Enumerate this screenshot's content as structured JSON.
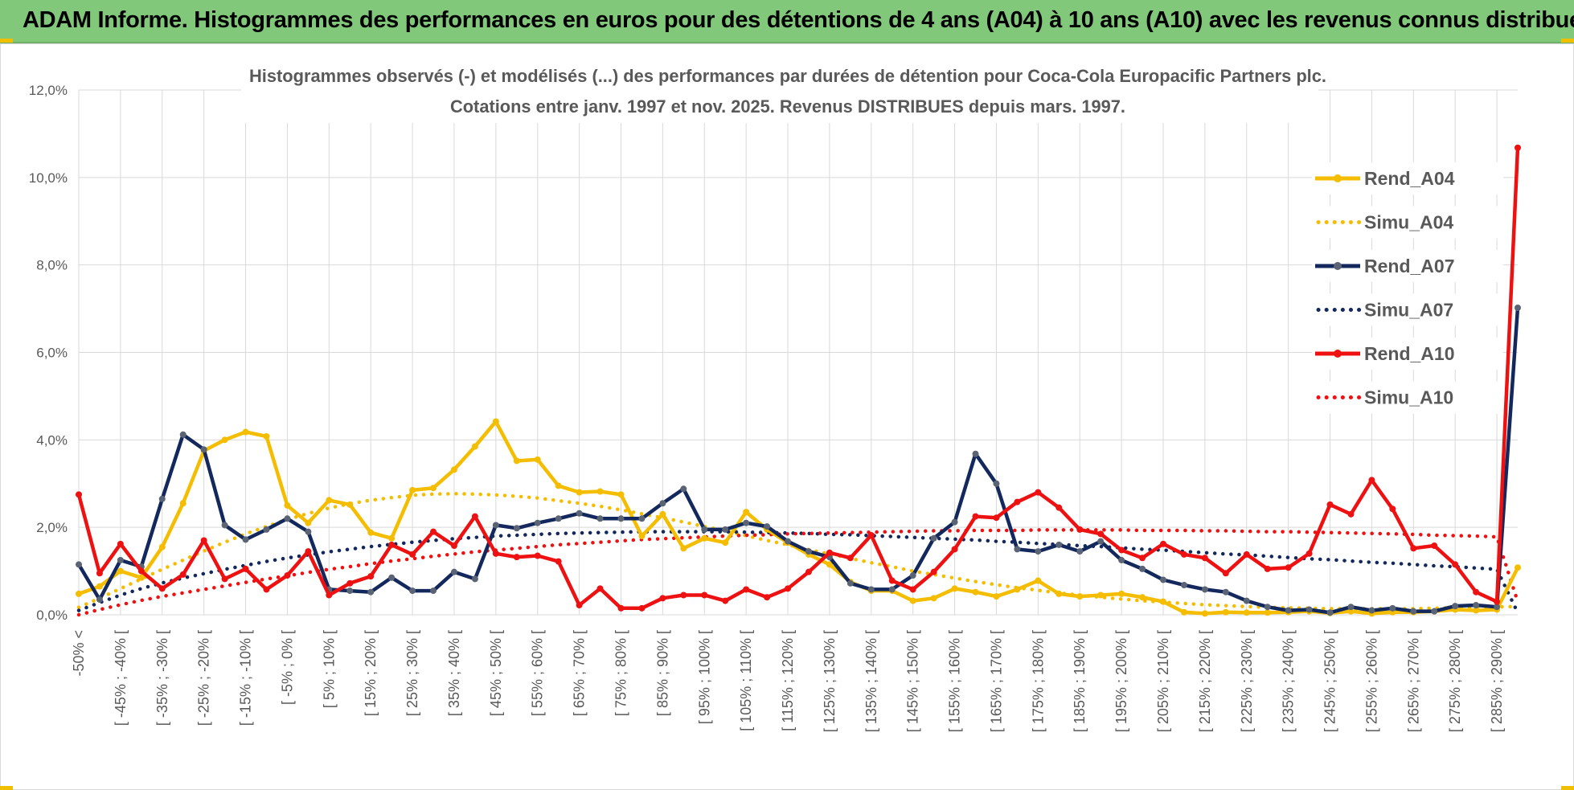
{
  "banner": {
    "title": "ADAM Informe. Histogrammes des performances en euros pour des détentions de 4 ans (A04) à 10 ans (A10) avec les revenus connus distribués"
  },
  "colors": {
    "banner_bg": "#82c87a",
    "a04": "#f5bd00",
    "a07": "#13285c",
    "a10": "#ee1111",
    "marker_a07": "#5a6475",
    "grid": "#d9d9d9"
  },
  "chart_data": {
    "type": "line",
    "title": "Histogrammes observés (-) et modélisés (...) des performances par durées de détention pour Coca-Cola Europacific Partners plc.",
    "subtitle": "Cotations entre janv. 1997 et nov. 2025. Revenus DISTRIBUES depuis mars. 1997.",
    "ylim": [
      0,
      12
    ],
    "yticks": [
      "0,0%",
      "2,0%",
      "4,0%",
      "6,0%",
      "8,0%",
      "10,0%",
      "12,0%"
    ],
    "ytick_values": [
      0,
      2,
      4,
      6,
      8,
      10,
      12
    ],
    "x_count": 70,
    "category_labels": [
      "-50% <",
      "[ -45% ; -40% [",
      "[ -35% ; -30% [",
      "[ -25% ; -20% [",
      "[ -15% ; -10% [",
      "[ -5% ; 0% [",
      "[ 5% ; 10% [",
      "[ 15% ; 20% [",
      "[ 25% ; 30% [",
      "[ 35% ; 40% [",
      "[ 45% ; 50% [",
      "[ 55% ; 60% [",
      "[ 65% ; 70% [",
      "[ 75% ; 80% [",
      "[ 85% ; 90% [",
      "[ 95% ; 100% [",
      "[ 105% ; 110% [",
      "[ 115% ; 120% [",
      "[ 125% ; 130% [",
      "[ 135% ; 140% [",
      "[ 145% ; 150% [",
      "[ 155% ; 160% [",
      "[ 165% ; 170% [",
      "[ 175% ; 180% [",
      "[ 185% ; 190% [",
      "[ 195% ; 200% [",
      "[ 205% ; 210% [",
      "[ 215% ; 220% [",
      "[ 225% ; 230% [",
      "[ 235% ; 240% [",
      "[ 245% ; 250% [",
      "[ 255% ; 260% [",
      "[ 265% ; 270% [",
      "[ 275% ; 280% [",
      "[ 285% ; 290% ["
    ],
    "legend_position": "right",
    "series": [
      {
        "name": "Rend_A04",
        "style": "solid",
        "values": [
          0.48,
          0.65,
          1.0,
          0.85,
          1.55,
          2.55,
          3.75,
          4.0,
          4.18,
          4.08,
          2.5,
          2.1,
          2.62,
          2.52,
          1.88,
          1.75,
          2.85,
          2.9,
          3.32,
          3.85,
          4.42,
          3.52,
          3.55,
          2.95,
          2.8,
          2.82,
          2.75,
          1.8,
          2.3,
          1.52,
          1.75,
          1.65,
          2.35,
          1.95,
          1.65,
          1.38,
          1.15,
          0.75,
          0.55,
          0.55,
          0.32,
          0.38,
          0.6,
          0.52,
          0.42,
          0.58,
          0.78,
          0.48,
          0.42,
          0.45,
          0.48,
          0.4,
          0.3,
          0.06,
          0.03,
          0.06,
          0.05,
          0.05,
          0.06,
          0.08,
          0.04,
          0.08,
          0.03,
          0.06,
          0.06,
          0.08,
          0.12,
          0.1,
          0.12,
          1.08
        ]
      },
      {
        "name": "Simu_A04",
        "style": "dotted",
        "values": [
          0.17,
          0.38,
          0.6,
          0.82,
          1.04,
          1.25,
          1.46,
          1.66,
          1.85,
          2.02,
          2.18,
          2.32,
          2.44,
          2.54,
          2.62,
          2.68,
          2.73,
          2.76,
          2.77,
          2.76,
          2.74,
          2.71,
          2.67,
          2.61,
          2.55,
          2.48,
          2.4,
          2.31,
          2.22,
          2.12,
          2.02,
          1.92,
          1.81,
          1.7,
          1.6,
          1.49,
          1.39,
          1.29,
          1.19,
          1.1,
          1.0,
          0.92,
          0.84,
          0.76,
          0.69,
          0.62,
          0.56,
          0.5,
          0.45,
          0.4,
          0.36,
          0.32,
          0.29,
          0.26,
          0.23,
          0.21,
          0.19,
          0.17,
          0.16,
          0.15,
          0.14,
          0.14,
          0.14,
          0.14,
          0.14,
          0.15,
          0.16,
          0.17,
          0.18,
          0.19
        ]
      },
      {
        "name": "Rend_A07",
        "style": "solid",
        "values": [
          1.15,
          0.35,
          1.25,
          1.1,
          2.65,
          4.12,
          3.78,
          2.05,
          1.72,
          1.95,
          2.2,
          1.9,
          0.58,
          0.55,
          0.52,
          0.85,
          0.55,
          0.55,
          0.98,
          0.82,
          2.05,
          1.98,
          2.1,
          2.2,
          2.32,
          2.2,
          2.2,
          2.2,
          2.55,
          2.88,
          1.95,
          1.95,
          2.1,
          2.02,
          1.68,
          1.45,
          1.32,
          0.72,
          0.58,
          0.58,
          0.9,
          1.75,
          2.12,
          3.68,
          3.0,
          1.5,
          1.45,
          1.6,
          1.45,
          1.68,
          1.25,
          1.05,
          0.8,
          0.68,
          0.58,
          0.52,
          0.32,
          0.18,
          0.1,
          0.12,
          0.05,
          0.18,
          0.1,
          0.15,
          0.08,
          0.08,
          0.2,
          0.22,
          0.18,
          7.02
        ]
      },
      {
        "name": "Simu_A07",
        "style": "dotted",
        "values": [
          0.1,
          0.28,
          0.45,
          0.6,
          0.73,
          0.84,
          0.94,
          1.04,
          1.13,
          1.22,
          1.3,
          1.37,
          1.44,
          1.5,
          1.56,
          1.61,
          1.66,
          1.7,
          1.74,
          1.77,
          1.8,
          1.82,
          1.84,
          1.86,
          1.87,
          1.88,
          1.89,
          1.9,
          1.9,
          1.9,
          1.9,
          1.9,
          1.89,
          1.88,
          1.87,
          1.86,
          1.84,
          1.83,
          1.81,
          1.79,
          1.77,
          1.75,
          1.73,
          1.71,
          1.68,
          1.66,
          1.63,
          1.61,
          1.58,
          1.56,
          1.53,
          1.5,
          1.48,
          1.45,
          1.42,
          1.39,
          1.37,
          1.34,
          1.31,
          1.28,
          1.26,
          1.23,
          1.2,
          1.18,
          1.15,
          1.12,
          1.1,
          1.07,
          1.04,
          0.05
        ]
      },
      {
        "name": "Rend_A10",
        "style": "solid",
        "values": [
          2.75,
          0.95,
          1.62,
          1.0,
          0.6,
          0.92,
          1.7,
          0.82,
          1.05,
          0.58,
          0.9,
          1.45,
          0.45,
          0.72,
          0.88,
          1.6,
          1.38,
          1.9,
          1.58,
          2.25,
          1.4,
          1.32,
          1.35,
          1.22,
          0.22,
          0.6,
          0.15,
          0.15,
          0.38,
          0.45,
          0.45,
          0.32,
          0.58,
          0.4,
          0.6,
          0.98,
          1.42,
          1.3,
          1.82,
          0.78,
          0.58,
          0.98,
          1.5,
          2.25,
          2.22,
          2.58,
          2.8,
          2.45,
          1.95,
          1.85,
          1.48,
          1.3,
          1.62,
          1.38,
          1.3,
          0.95,
          1.38,
          1.05,
          1.08,
          1.4,
          2.52,
          2.3,
          3.08,
          2.42,
          1.52,
          1.58,
          1.15,
          0.52,
          0.3,
          10.68
        ]
      },
      {
        "name": "Simu_A10",
        "style": "dotted",
        "values": [
          0.0,
          0.12,
          0.23,
          0.33,
          0.42,
          0.5,
          0.58,
          0.66,
          0.74,
          0.82,
          0.89,
          0.97,
          1.04,
          1.1,
          1.17,
          1.23,
          1.28,
          1.34,
          1.39,
          1.44,
          1.48,
          1.52,
          1.56,
          1.6,
          1.63,
          1.66,
          1.69,
          1.72,
          1.74,
          1.76,
          1.78,
          1.8,
          1.82,
          1.83,
          1.85,
          1.86,
          1.87,
          1.88,
          1.89,
          1.9,
          1.91,
          1.92,
          1.92,
          1.93,
          1.93,
          1.93,
          1.94,
          1.94,
          1.94,
          1.94,
          1.94,
          1.93,
          1.93,
          1.93,
          1.92,
          1.92,
          1.91,
          1.9,
          1.9,
          1.89,
          1.88,
          1.87,
          1.86,
          1.85,
          1.84,
          1.82,
          1.81,
          1.8,
          1.78,
          0.3
        ]
      }
    ]
  }
}
